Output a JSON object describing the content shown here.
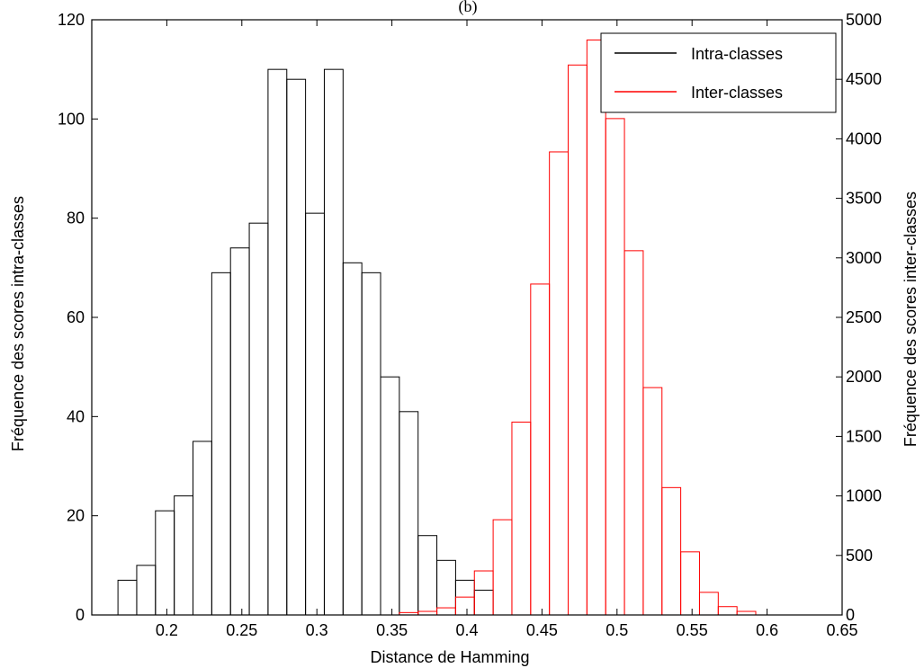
{
  "chart_data": {
    "type": "bar",
    "title": "(b)",
    "xlabel": "Distance de Hamming",
    "ylabel_left": "Fréquence des scores intra-classes",
    "ylabel_right": "Fréquence des scores inter-classes",
    "xlim": [
      0.15,
      0.65
    ],
    "ylim_left": [
      0,
      120
    ],
    "ylim_right": [
      0,
      5000
    ],
    "xticks": [
      "0.2",
      "0.25",
      "0.3",
      "0.35",
      "0.4",
      "0.45",
      "0.5",
      "0.55",
      "0.6",
      "0.65"
    ],
    "yticks_left": [
      "0",
      "20",
      "40",
      "60",
      "80",
      "100",
      "120"
    ],
    "yticks_right": [
      "0",
      "500",
      "1000",
      "1500",
      "2000",
      "2500",
      "3000",
      "3500",
      "4000",
      "4500",
      "5000"
    ],
    "grid": false,
    "legend_position": "top-right",
    "bin_width": 0.0125,
    "series": [
      {
        "name": "Intra-classes",
        "axis": "left",
        "color": "#000000",
        "x": [
          0.1737,
          0.1862,
          0.1987,
          0.2112,
          0.2237,
          0.2362,
          0.2487,
          0.2612,
          0.2737,
          0.2862,
          0.2987,
          0.3112,
          0.3237,
          0.3362,
          0.3487,
          0.3612,
          0.3737,
          0.3862
        ],
        "values": [
          7,
          10,
          21,
          24,
          35,
          69,
          74,
          79,
          110,
          108,
          81,
          110,
          71,
          69,
          48,
          41,
          16,
          11
        ]
      },
      {
        "name": "Intra-classes-tail",
        "axis": "left",
        "color": "#000000",
        "x": [
          0.3987,
          0.4112
        ],
        "values": [
          7,
          5
        ]
      },
      {
        "name": "Inter-classes",
        "axis": "right",
        "color": "#ff0000",
        "x": [
          0.3612,
          0.3737,
          0.3862,
          0.3987,
          0.4112,
          0.4237,
          0.4362,
          0.4487,
          0.4612,
          0.4737,
          0.4862,
          0.4987,
          0.5112,
          0.5237,
          0.5362,
          0.5487,
          0.5612,
          0.5737
        ],
        "values": [
          20,
          30,
          60,
          150,
          370,
          800,
          1620,
          2780,
          3890,
          4620,
          4830,
          4170,
          3060,
          1910,
          1070,
          530,
          190,
          70
        ]
      },
      {
        "name": "Inter-classes-tail",
        "axis": "right",
        "color": "#ff0000",
        "x": [
          0.5862
        ],
        "values": [
          30
        ]
      }
    ]
  }
}
